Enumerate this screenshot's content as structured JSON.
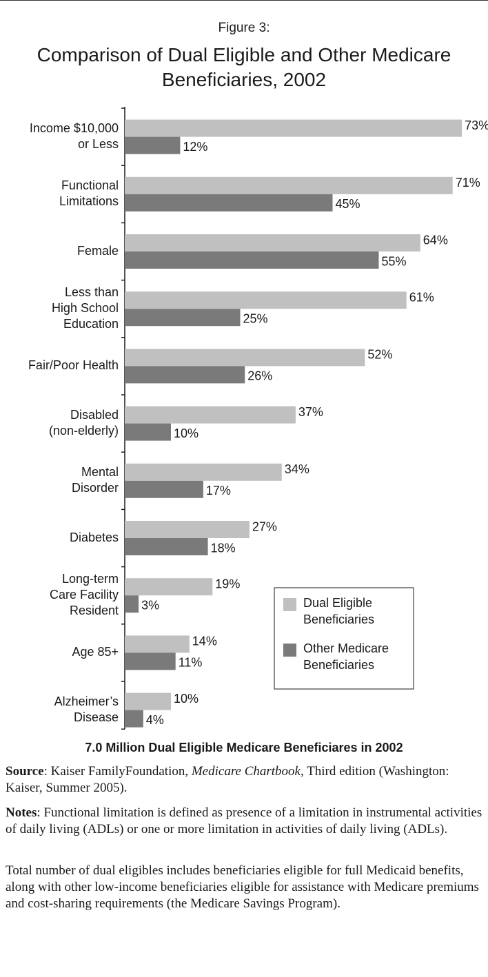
{
  "chart_data": {
    "type": "hbar",
    "figure_label": "Figure 3:",
    "title": "Comparison of Dual Eligible and Other Medicare Beneficiaries, 2002",
    "categories": [
      [
        "Income $10,000",
        "or Less"
      ],
      [
        "Functional",
        "Limitations"
      ],
      [
        "Female"
      ],
      [
        "Less than",
        "High School",
        "Education"
      ],
      [
        "Fair/Poor Health"
      ],
      [
        "Disabled",
        "(non-elderly)"
      ],
      [
        "Mental",
        "Disorder"
      ],
      [
        "Diabetes"
      ],
      [
        "Long-term",
        "Care Facility",
        "Resident"
      ],
      [
        "Age 85+"
      ],
      [
        "Alzheimer’s",
        "Disease"
      ]
    ],
    "series": [
      {
        "name": "Dual Eligible Beneficiaries",
        "color": "#c0c0c0",
        "values": [
          73,
          71,
          64,
          61,
          52,
          37,
          34,
          27,
          19,
          14,
          10
        ],
        "value_labels": [
          "73%",
          "71%",
          "64%",
          "61%",
          "52%",
          "37%",
          "34%",
          "27%",
          "19%",
          "14%",
          "10%"
        ]
      },
      {
        "name": "Other Medicare Beneficiaries",
        "color": "#7a7a7a",
        "values": [
          12,
          45,
          55,
          25,
          26,
          10,
          17,
          18,
          3,
          11,
          4
        ],
        "value_labels": [
          "12%",
          "45%",
          "55%",
          "25%",
          "26%",
          "10%",
          "17%",
          "18%",
          "3%",
          "11%",
          "4%"
        ]
      }
    ],
    "footer": "7.0 Million Dual Eligible Medicare Beneficiares in 2002"
  },
  "notes": {
    "source": {
      "label": "Source",
      "before": ": Kaiser FamilyFoundation, ",
      "italic": "Medicare Chartbook",
      "after": ", Third edition (Washington: Kaiser, Summer 2005)."
    },
    "notes": {
      "label": "Notes",
      "text": ": Functional limitation is defined as presence of a limitation in instrumental activities of daily living (ADLs) or one or more limitation in activities of daily living (ADLs)."
    },
    "total": "Total number of dual eligibles includes beneficiaries eligible for full Medicaid benefits, along with other low-income beneficiaries eligible for assistance with Medicare premiums and cost-sharing requirements (the Medicare Savings Program)."
  }
}
